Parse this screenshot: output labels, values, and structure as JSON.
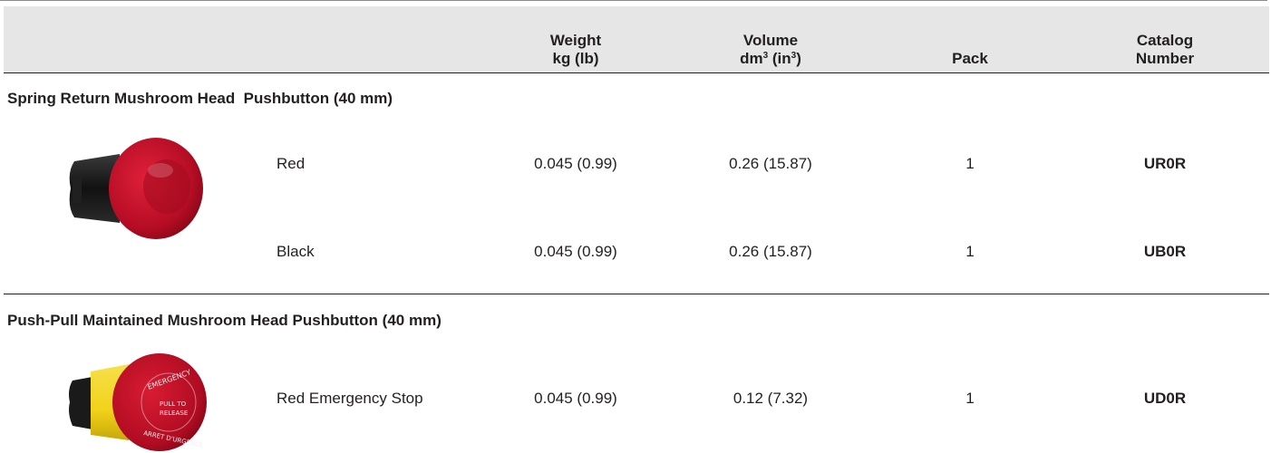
{
  "table": {
    "header": {
      "weight": [
        "Weight",
        "kg (lb)"
      ],
      "volume": [
        "Volume",
        "dm",
        "3",
        " (in",
        "3",
        ")"
      ],
      "pack": "Pack",
      "catalog": [
        "Catalog",
        "Number"
      ]
    },
    "sections": [
      {
        "title": "Spring Return Mushroom Head  Pushbutton (40 mm)",
        "image": "red-mushroom-pushbutton-photo",
        "rows": [
          {
            "description": "Red",
            "weight": "0.045 (0.99)",
            "volume": "0.26 (15.87)",
            "pack": "1",
            "catalog": "UR0R"
          },
          {
            "description": "Black",
            "weight": "0.045 (0.99)",
            "volume": "0.26 (15.87)",
            "pack": "1",
            "catalog": "UB0R"
          }
        ]
      },
      {
        "title": "Push-Pull Maintained Mushroom Head Pushbutton (40 mm)",
        "image": "emergency-stop-pushbutton-photo",
        "rows": [
          {
            "description": "Red Emergency Stop",
            "weight": "0.045 (0.99)",
            "volume": "0.12 (7.32)",
            "pack": "1",
            "catalog": "UD0R"
          }
        ]
      }
    ],
    "colors": {
      "header_bg": "#e6e6e7",
      "rule": "#231f20",
      "mushroom_red": "#c8102e",
      "collar_yellow": "#f2d21a"
    }
  }
}
